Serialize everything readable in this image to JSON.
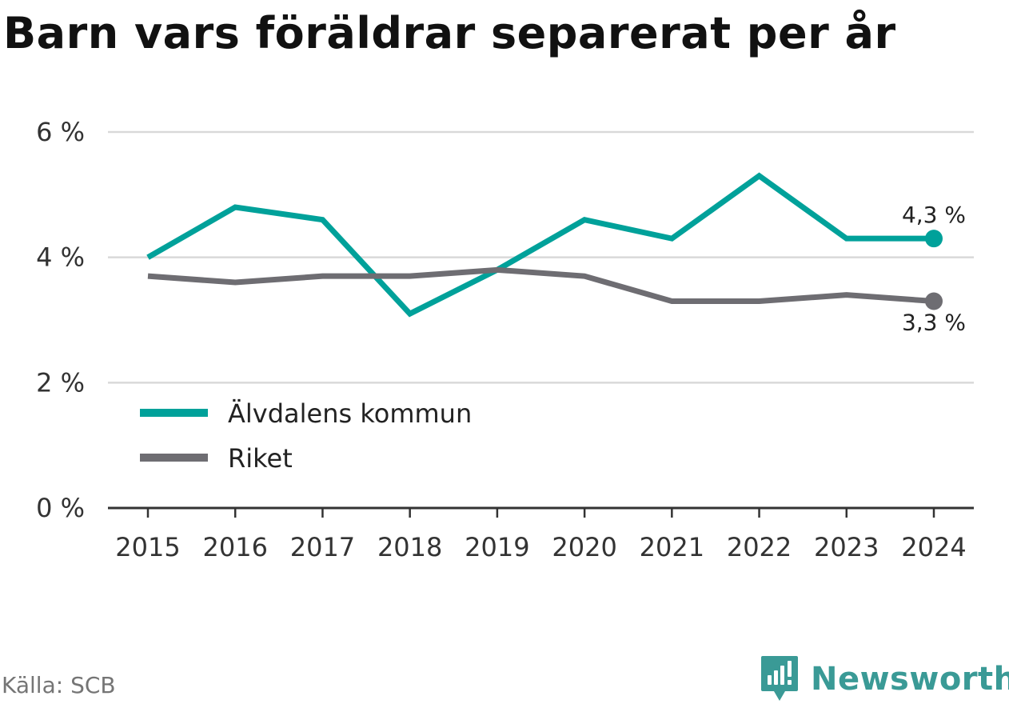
{
  "chart_data": {
    "type": "line",
    "title": "Barn vars föräldrar separerat per år",
    "categories": [
      "2015",
      "2016",
      "2017",
      "2018",
      "2019",
      "2020",
      "2021",
      "2022",
      "2023",
      "2024"
    ],
    "series": [
      {
        "name": "Älvdalens kommun",
        "color": "#00a19a",
        "values": [
          4.0,
          4.8,
          4.6,
          3.1,
          3.8,
          4.6,
          4.3,
          5.3,
          4.3,
          4.3
        ],
        "end_label": "4,3 %"
      },
      {
        "name": "Riket",
        "color": "#6e6d72",
        "values": [
          3.7,
          3.6,
          3.7,
          3.7,
          3.8,
          3.7,
          3.3,
          3.3,
          3.4,
          3.3
        ],
        "end_label": "3,3 %"
      }
    ],
    "ylim": [
      0,
      6
    ],
    "y_ticks": [
      0,
      2,
      4,
      6
    ],
    "y_tick_labels": [
      "0 %",
      "2 %",
      "4 %",
      "6 %"
    ],
    "grid": true,
    "legend_position": "bottom-left"
  },
  "source": "Källa: SCB",
  "brand": "Newsworthy"
}
